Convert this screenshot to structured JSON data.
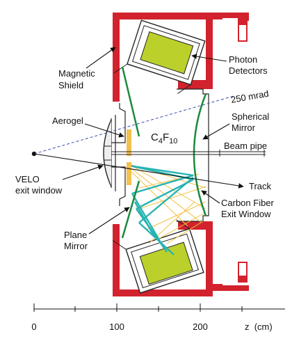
{
  "labels": {
    "magnetic_shield": [
      "Magnetic",
      "Shield"
    ],
    "photon_detectors": [
      "Photon",
      "Detectors"
    ],
    "aerogel": "Aerogel",
    "mrad": "250 mrad",
    "spherical_mirror": [
      "Spherical",
      "Mirror"
    ],
    "gas_main": "C",
    "gas_sub1": "4",
    "gas_mid": "F",
    "gas_sub2": "10",
    "beam_pipe": "Beam pipe",
    "velo_window": [
      "VELO",
      "exit window"
    ],
    "track": "Track",
    "carbon_fiber": [
      "Carbon Fiber",
      "Exit Window"
    ],
    "plane_mirror": [
      "Plane",
      "Mirror"
    ]
  },
  "axis": {
    "ticks": [
      "0",
      "100",
      "200"
    ],
    "unit_label": "z  (cm)"
  },
  "colors": {
    "shield": "#d2222d",
    "detector": "#bcd02c",
    "aerogel": "#f2c14e",
    "mirror": "#1a8a3a",
    "cyan_rays": "#27b3b3",
    "yellow_rays": "#f0c040"
  }
}
